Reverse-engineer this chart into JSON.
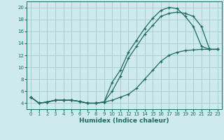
{
  "xlabel": "Humidex (Indice chaleur)",
  "bg_color": "#ceeaea",
  "grid_color": "#aacfcf",
  "line_color": "#1a6b5a",
  "xlim": [
    -0.5,
    23.5
  ],
  "ylim": [
    3.0,
    21.0
  ],
  "xticks": [
    0,
    1,
    2,
    3,
    4,
    5,
    6,
    7,
    8,
    9,
    10,
    11,
    12,
    13,
    14,
    15,
    16,
    17,
    18,
    19,
    20,
    21,
    22,
    23
  ],
  "yticks": [
    4,
    6,
    8,
    10,
    12,
    14,
    16,
    18,
    20
  ],
  "curve1_x": [
    0,
    1,
    2,
    3,
    4,
    5,
    6,
    7,
    8,
    9,
    10,
    11,
    12,
    13,
    14,
    15,
    16,
    17,
    18,
    19,
    20,
    21,
    22,
    23
  ],
  "curve1_y": [
    5.0,
    4.0,
    4.2,
    4.5,
    4.5,
    4.5,
    4.3,
    4.0,
    4.0,
    4.2,
    7.5,
    9.5,
    12.5,
    14.5,
    16.5,
    18.2,
    19.5,
    20.0,
    19.8,
    18.5,
    16.8,
    13.5,
    13.0,
    13.0
  ],
  "curve2_x": [
    0,
    1,
    2,
    3,
    4,
    5,
    6,
    7,
    8,
    9,
    10,
    11,
    12,
    13,
    14,
    15,
    16,
    17,
    18,
    19,
    20,
    21,
    22,
    23
  ],
  "curve2_y": [
    5.0,
    4.0,
    4.2,
    4.5,
    4.5,
    4.5,
    4.3,
    4.0,
    4.0,
    4.2,
    6.0,
    8.5,
    11.5,
    13.5,
    15.5,
    17.0,
    18.5,
    19.0,
    19.2,
    19.0,
    18.5,
    16.8,
    13.0,
    13.0
  ],
  "curve3_x": [
    0,
    1,
    2,
    3,
    4,
    5,
    6,
    7,
    8,
    9,
    10,
    11,
    12,
    13,
    14,
    15,
    16,
    17,
    18,
    19,
    20,
    21,
    22,
    23
  ],
  "curve3_y": [
    5.0,
    4.0,
    4.2,
    4.5,
    4.5,
    4.5,
    4.3,
    4.0,
    4.0,
    4.2,
    4.5,
    5.0,
    5.5,
    6.5,
    8.0,
    9.5,
    11.0,
    12.0,
    12.5,
    12.8,
    12.9,
    13.0,
    13.0,
    13.0
  ]
}
